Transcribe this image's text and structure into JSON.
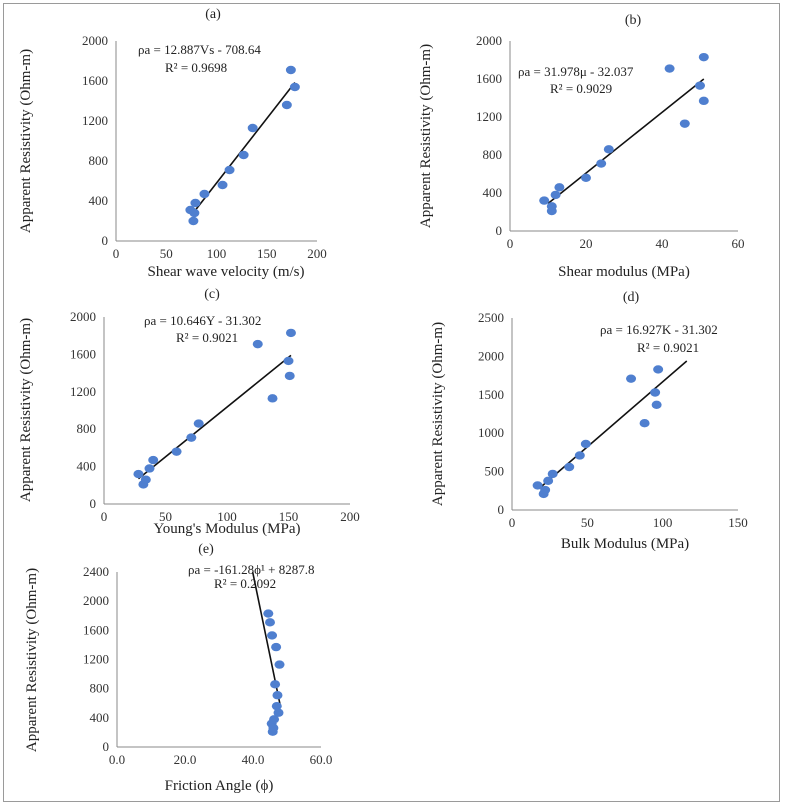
{
  "chart_data": [
    {
      "type": "scatter",
      "panel_label": "(a)",
      "xlabel": "Shear wave velocity (m/s)",
      "ylabel": "Apparent Resistivity (Ohm-m)",
      "xlim": [
        0,
        200
      ],
      "ylim": [
        0,
        2000
      ],
      "xticks": [
        "0",
        "50",
        "100",
        "150",
        "200"
      ],
      "yticks": [
        "0",
        "400",
        "800",
        "1200",
        "1600",
        "2000"
      ],
      "equation": "ρa = 12.887Vs - 708.64",
      "r2": "R² = 0.9698",
      "points": {
        "x": [
          74,
          77,
          78,
          79,
          88,
          106,
          113,
          127,
          136,
          170,
          174,
          178
        ],
        "y": [
          310,
          200,
          280,
          380,
          470,
          560,
          710,
          860,
          1130,
          1360,
          1710,
          1540
        ]
      },
      "trendline": {
        "x": [
          76,
          178
        ],
        "y": [
          270,
          1585
        ]
      },
      "grid": false
    },
    {
      "type": "scatter",
      "panel_label": "(b)",
      "xlabel": "Shear modulus (MPa)",
      "ylabel": "Apparent Resistivity (Ohm-m)",
      "xlim": [
        0,
        60
      ],
      "ylim": [
        0,
        2000
      ],
      "xticks": [
        "0",
        "20",
        "40",
        "60"
      ],
      "yticks": [
        "0",
        "400",
        "800",
        "1200",
        "1600",
        "2000"
      ],
      "equation": "ρa = 31.978μ - 32.037",
      "r2": "R² = 0.9029",
      "points": {
        "x": [
          9,
          11,
          11,
          12,
          13,
          20,
          24,
          26,
          42,
          46,
          50,
          51,
          51
        ],
        "y": [
          320,
          210,
          260,
          380,
          460,
          560,
          710,
          860,
          1710,
          1130,
          1530,
          1370,
          1830
        ]
      },
      "trendline": {
        "x": [
          10,
          51
        ],
        "y": [
          290,
          1600
        ]
      },
      "grid": false
    },
    {
      "type": "scatter",
      "panel_label": "(c)",
      "xlabel": "Young's Modulus (MPa)",
      "ylabel": "Apparent Resistivity (Ohm-m)",
      "xlim": [
        0,
        200
      ],
      "ylim": [
        0,
        2000
      ],
      "xticks": [
        "0",
        "50",
        "100",
        "150",
        "200"
      ],
      "yticks": [
        "0",
        "400",
        "800",
        "1200",
        "1600",
        "2000"
      ],
      "equation": "ρa = 10.646Y - 31.302",
      "r2": "R² = 0.9021",
      "points": {
        "x": [
          28,
          32,
          34,
          37,
          40,
          59,
          71,
          77,
          125,
          137,
          150,
          151,
          152
        ],
        "y": [
          320,
          210,
          260,
          380,
          470,
          560,
          710,
          860,
          1710,
          1130,
          1530,
          1370,
          1830
        ]
      },
      "trendline": {
        "x": [
          28,
          152
        ],
        "y": [
          270,
          1590
        ]
      },
      "grid": false
    },
    {
      "type": "scatter",
      "panel_label": "(d)",
      "xlabel": "Bulk Modulus (MPa)",
      "ylabel": "Apparent Resistivity (Ohm-m)",
      "xlim": [
        0,
        150
      ],
      "ylim": [
        0,
        2500
      ],
      "xticks": [
        "0",
        "50",
        "100",
        "150"
      ],
      "yticks": [
        "0",
        "500",
        "1000",
        "1500",
        "2000",
        "2500"
      ],
      "equation": "ρa = 16.927K - 31.302",
      "r2": "R² = 0.9021",
      "points": {
        "x": [
          17,
          21,
          22,
          24,
          27,
          38,
          45,
          49,
          79,
          88,
          95,
          96,
          97
        ],
        "y": [
          320,
          210,
          260,
          380,
          470,
          560,
          710,
          860,
          1710,
          1130,
          1530,
          1370,
          1830
        ]
      },
      "trendline": {
        "x": [
          18,
          116
        ],
        "y": [
          280,
          1940
        ]
      },
      "grid": false
    },
    {
      "type": "scatter",
      "panel_label": "(e)",
      "xlabel": "Friction Angle (ϕ)",
      "ylabel": "Apparent Resistivity (Ohm-m)",
      "xlim": [
        0,
        60
      ],
      "ylim": [
        0,
        2400
      ],
      "xticks": [
        "0.0",
        "20.0",
        "40.0",
        "60.0"
      ],
      "yticks": [
        "0",
        "400",
        "800",
        "1200",
        "1600",
        "2000",
        "2400"
      ],
      "equation": "ρa = -161.28ϕ¹ + 8287.8",
      "r2": "R² = 0.2092",
      "points": {
        "x": [
          44.5,
          45,
          45.5,
          45.6,
          45.8,
          46,
          46.2,
          46.5,
          46.8,
          47,
          47.2,
          47.5,
          47.8
        ],
        "y": [
          1830,
          1710,
          320,
          1530,
          210,
          260,
          380,
          860,
          1370,
          560,
          710,
          470,
          1130
        ]
      },
      "trendline": {
        "x": [
          39.9,
          48.1
        ],
        "y": [
          2400,
          550
        ]
      },
      "grid": false
    }
  ]
}
